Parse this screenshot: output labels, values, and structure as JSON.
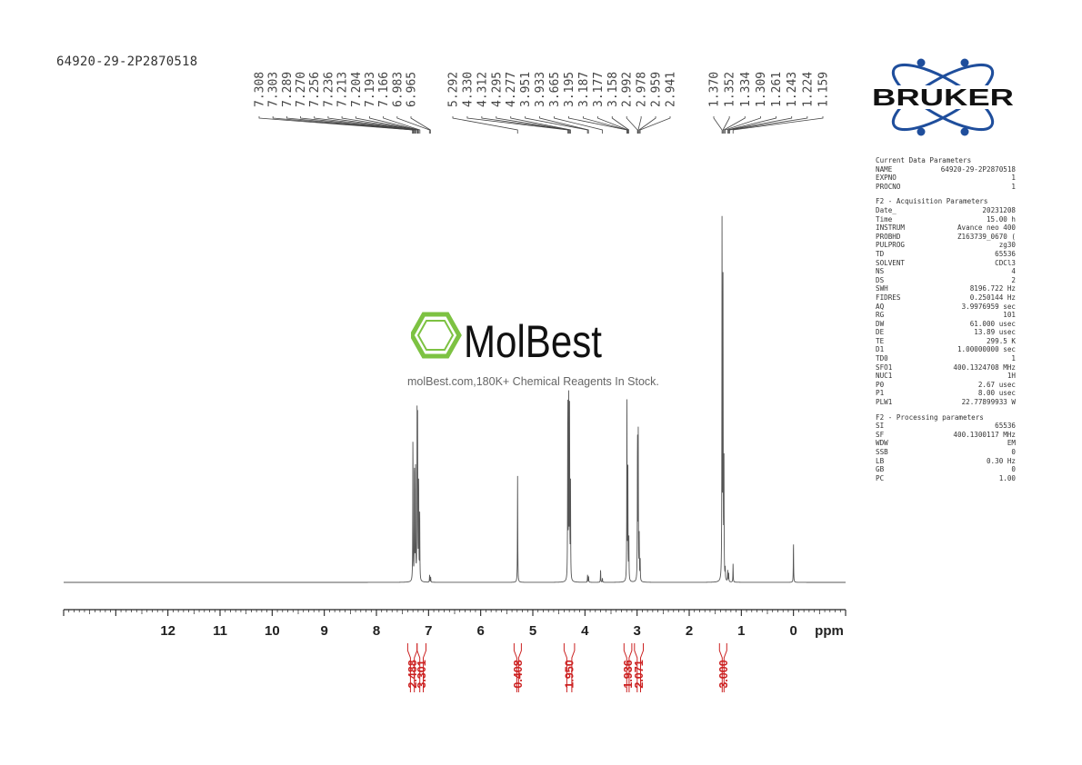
{
  "sample_name": "64920-29-2P2870518",
  "logo": {
    "text": "BRUKER",
    "ring_color": "#1f4e9c",
    "dot_color": "#1f4e9c"
  },
  "watermark": {
    "brand": "MolBest",
    "tagline": "molBest.com,180K+ Chemical Reagents In Stock.",
    "hex_color": "#7dc242"
  },
  "colors": {
    "spectrum": "#555555",
    "integral": "#cc2222",
    "axis": "#222222",
    "peak_labels": "#444444"
  },
  "parameters": {
    "current": {
      "title": "Current Data Parameters",
      "rows": [
        {
          "k": "NAME",
          "v": "64920-29-2P2870518",
          "u": ""
        },
        {
          "k": "EXPNO",
          "v": "1",
          "u": ""
        },
        {
          "k": "PROCNO",
          "v": "1",
          "u": ""
        }
      ]
    },
    "acquisition": {
      "title": "F2 - Acquisition Parameters",
      "rows": [
        {
          "k": "Date_",
          "v": "20231208",
          "u": ""
        },
        {
          "k": "Time",
          "v": "15.00",
          "u": "h"
        },
        {
          "k": "INSTRUM",
          "v": "Avance neo 400",
          "u": ""
        },
        {
          "k": "PROBHD",
          "v": "Z163739_0670 (",
          "u": ""
        },
        {
          "k": "PULPROG",
          "v": "zg30",
          "u": ""
        },
        {
          "k": "TD",
          "v": "65536",
          "u": ""
        },
        {
          "k": "SOLVENT",
          "v": "CDCl3",
          "u": ""
        },
        {
          "k": "NS",
          "v": "4",
          "u": ""
        },
        {
          "k": "DS",
          "v": "2",
          "u": ""
        },
        {
          "k": "SWH",
          "v": "8196.722",
          "u": "Hz"
        },
        {
          "k": "FIDRES",
          "v": "0.250144",
          "u": "Hz"
        },
        {
          "k": "AQ",
          "v": "3.9976959",
          "u": "sec"
        },
        {
          "k": "RG",
          "v": "101",
          "u": ""
        },
        {
          "k": "DW",
          "v": "61.000",
          "u": "usec"
        },
        {
          "k": "DE",
          "v": "13.89",
          "u": "usec"
        },
        {
          "k": "TE",
          "v": "299.5",
          "u": "K"
        },
        {
          "k": "D1",
          "v": "1.00000000",
          "u": "sec"
        },
        {
          "k": "TD0",
          "v": "1",
          "u": ""
        },
        {
          "k": "SFO1",
          "v": "400.1324708",
          "u": "MHz"
        },
        {
          "k": "NUC1",
          "v": "1H",
          "u": ""
        },
        {
          "k": "P0",
          "v": "2.67",
          "u": "usec"
        },
        {
          "k": "P1",
          "v": "8.00",
          "u": "usec"
        },
        {
          "k": "PLW1",
          "v": "22.77899933",
          "u": "W"
        }
      ]
    },
    "processing": {
      "title": "F2 - Processing parameters",
      "rows": [
        {
          "k": "SI",
          "v": "65536",
          "u": ""
        },
        {
          "k": "SF",
          "v": "400.1300117",
          "u": "MHz"
        },
        {
          "k": "WDW",
          "v": "EM",
          "u": ""
        },
        {
          "k": "SSB",
          "v": "0",
          "u": ""
        },
        {
          "k": "LB",
          "v": "0.30",
          "u": "Hz"
        },
        {
          "k": "GB",
          "v": "0",
          "u": ""
        },
        {
          "k": "PC",
          "v": "1.00",
          "u": ""
        }
      ]
    }
  },
  "chart_data": {
    "type": "line",
    "title": "",
    "xlabel": "ppm",
    "ylabel": "",
    "xlim": [
      14.0,
      -1.0
    ],
    "ylim": [
      0,
      100
    ],
    "x_ticks": [
      12,
      11,
      10,
      9,
      8,
      7,
      6,
      5,
      4,
      3,
      2,
      1,
      0
    ],
    "x_tick_labels": [
      "12",
      "11",
      "10",
      "9",
      "8",
      "7",
      "6",
      "5",
      "4",
      "3",
      "2",
      "1",
      "0"
    ],
    "minor_tick_step": 0.1,
    "grid": false,
    "peak_labels": [
      "7.308",
      "7.303",
      "7.289",
      "7.270",
      "7.256",
      "7.236",
      "7.213",
      "7.204",
      "7.193",
      "7.166",
      "6.983",
      "6.965",
      "5.292",
      "4.330",
      "4.312",
      "4.295",
      "4.277",
      "3.951",
      "3.933",
      "3.665",
      "3.195",
      "3.187",
      "3.177",
      "3.158",
      "2.992",
      "2.978",
      "2.959",
      "2.941",
      "1.370",
      "1.352",
      "1.334",
      "1.309",
      "1.261",
      "1.243",
      "1.224",
      "1.159"
    ],
    "peaks": [
      {
        "ppm": 7.3,
        "h": 40
      },
      {
        "ppm": 7.27,
        "h": 33
      },
      {
        "ppm": 7.25,
        "h": 30
      },
      {
        "ppm": 7.22,
        "h": 44
      },
      {
        "ppm": 7.21,
        "h": 41
      },
      {
        "ppm": 7.19,
        "h": 28
      },
      {
        "ppm": 7.17,
        "h": 18
      },
      {
        "ppm": 6.98,
        "h": 2
      },
      {
        "ppm": 6.96,
        "h": 1.5
      },
      {
        "ppm": 5.292,
        "h": 29
      },
      {
        "ppm": 4.33,
        "h": 48
      },
      {
        "ppm": 4.312,
        "h": 49
      },
      {
        "ppm": 4.295,
        "h": 47
      },
      {
        "ppm": 4.277,
        "h": 26
      },
      {
        "ppm": 3.95,
        "h": 2
      },
      {
        "ppm": 3.93,
        "h": 1.6
      },
      {
        "ppm": 3.7,
        "h": 3.5
      },
      {
        "ppm": 3.665,
        "h": 1.2
      },
      {
        "ppm": 3.195,
        "h": 49
      },
      {
        "ppm": 3.177,
        "h": 33
      },
      {
        "ppm": 3.158,
        "h": 12
      },
      {
        "ppm": 2.992,
        "h": 40
      },
      {
        "ppm": 2.978,
        "h": 40
      },
      {
        "ppm": 2.959,
        "h": 12
      },
      {
        "ppm": 2.941,
        "h": 6
      },
      {
        "ppm": 1.37,
        "h": 99
      },
      {
        "ppm": 1.352,
        "h": 80
      },
      {
        "ppm": 1.334,
        "h": 34
      },
      {
        "ppm": 1.309,
        "h": 3
      },
      {
        "ppm": 1.261,
        "h": 3
      },
      {
        "ppm": 1.243,
        "h": 2.5
      },
      {
        "ppm": 1.159,
        "h": 5
      },
      {
        "ppm": 0.0,
        "h": 11
      }
    ],
    "integrals": [
      {
        "label": "2.488",
        "from": 7.4,
        "to": 7.22
      },
      {
        "label": "3.301",
        "from": 7.22,
        "to": 7.05
      },
      {
        "label": "0.408",
        "from": 5.36,
        "to": 5.22
      },
      {
        "label": "1.950",
        "from": 4.4,
        "to": 4.2
      },
      {
        "label": "1.936",
        "from": 3.25,
        "to": 3.1
      },
      {
        "label": "2.071",
        "from": 3.05,
        "to": 2.88
      },
      {
        "label": "3.000",
        "from": 1.42,
        "to": 1.28
      }
    ]
  }
}
